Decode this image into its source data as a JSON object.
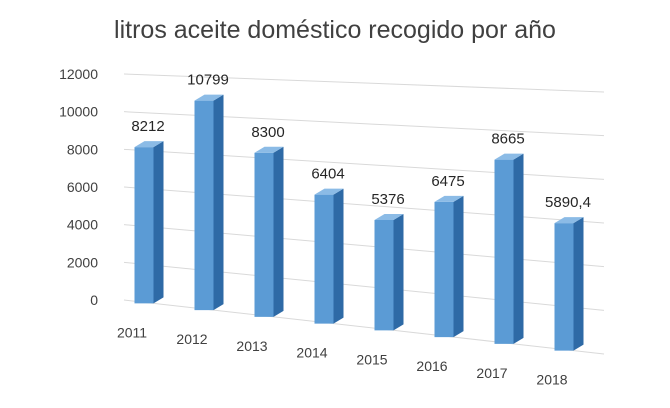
{
  "chart_data": {
    "type": "bar",
    "title": "litros aceite doméstico recogido por año",
    "xlabel": "",
    "ylabel": "",
    "categories": [
      "2011",
      "2012",
      "2013",
      "2014",
      "2015",
      "2016",
      "2017",
      "2018"
    ],
    "values": [
      8212,
      10799,
      8300,
      6404,
      5376,
      6475,
      8665,
      5890.4
    ],
    "data_labels": [
      "8212",
      "10799",
      "8300",
      "6404",
      "5376",
      "6475",
      "8665",
      "5890,4"
    ],
    "y_ticks": [
      "0",
      "2000",
      "4000",
      "6000",
      "8000",
      "10000",
      "12000"
    ],
    "ylim": [
      0,
      12000
    ],
    "grid": true,
    "legend": "none",
    "bar_color": "#5b9bd5",
    "bar_side_color": "#2e6aa6",
    "bar_top_color": "#8bbbe6"
  }
}
